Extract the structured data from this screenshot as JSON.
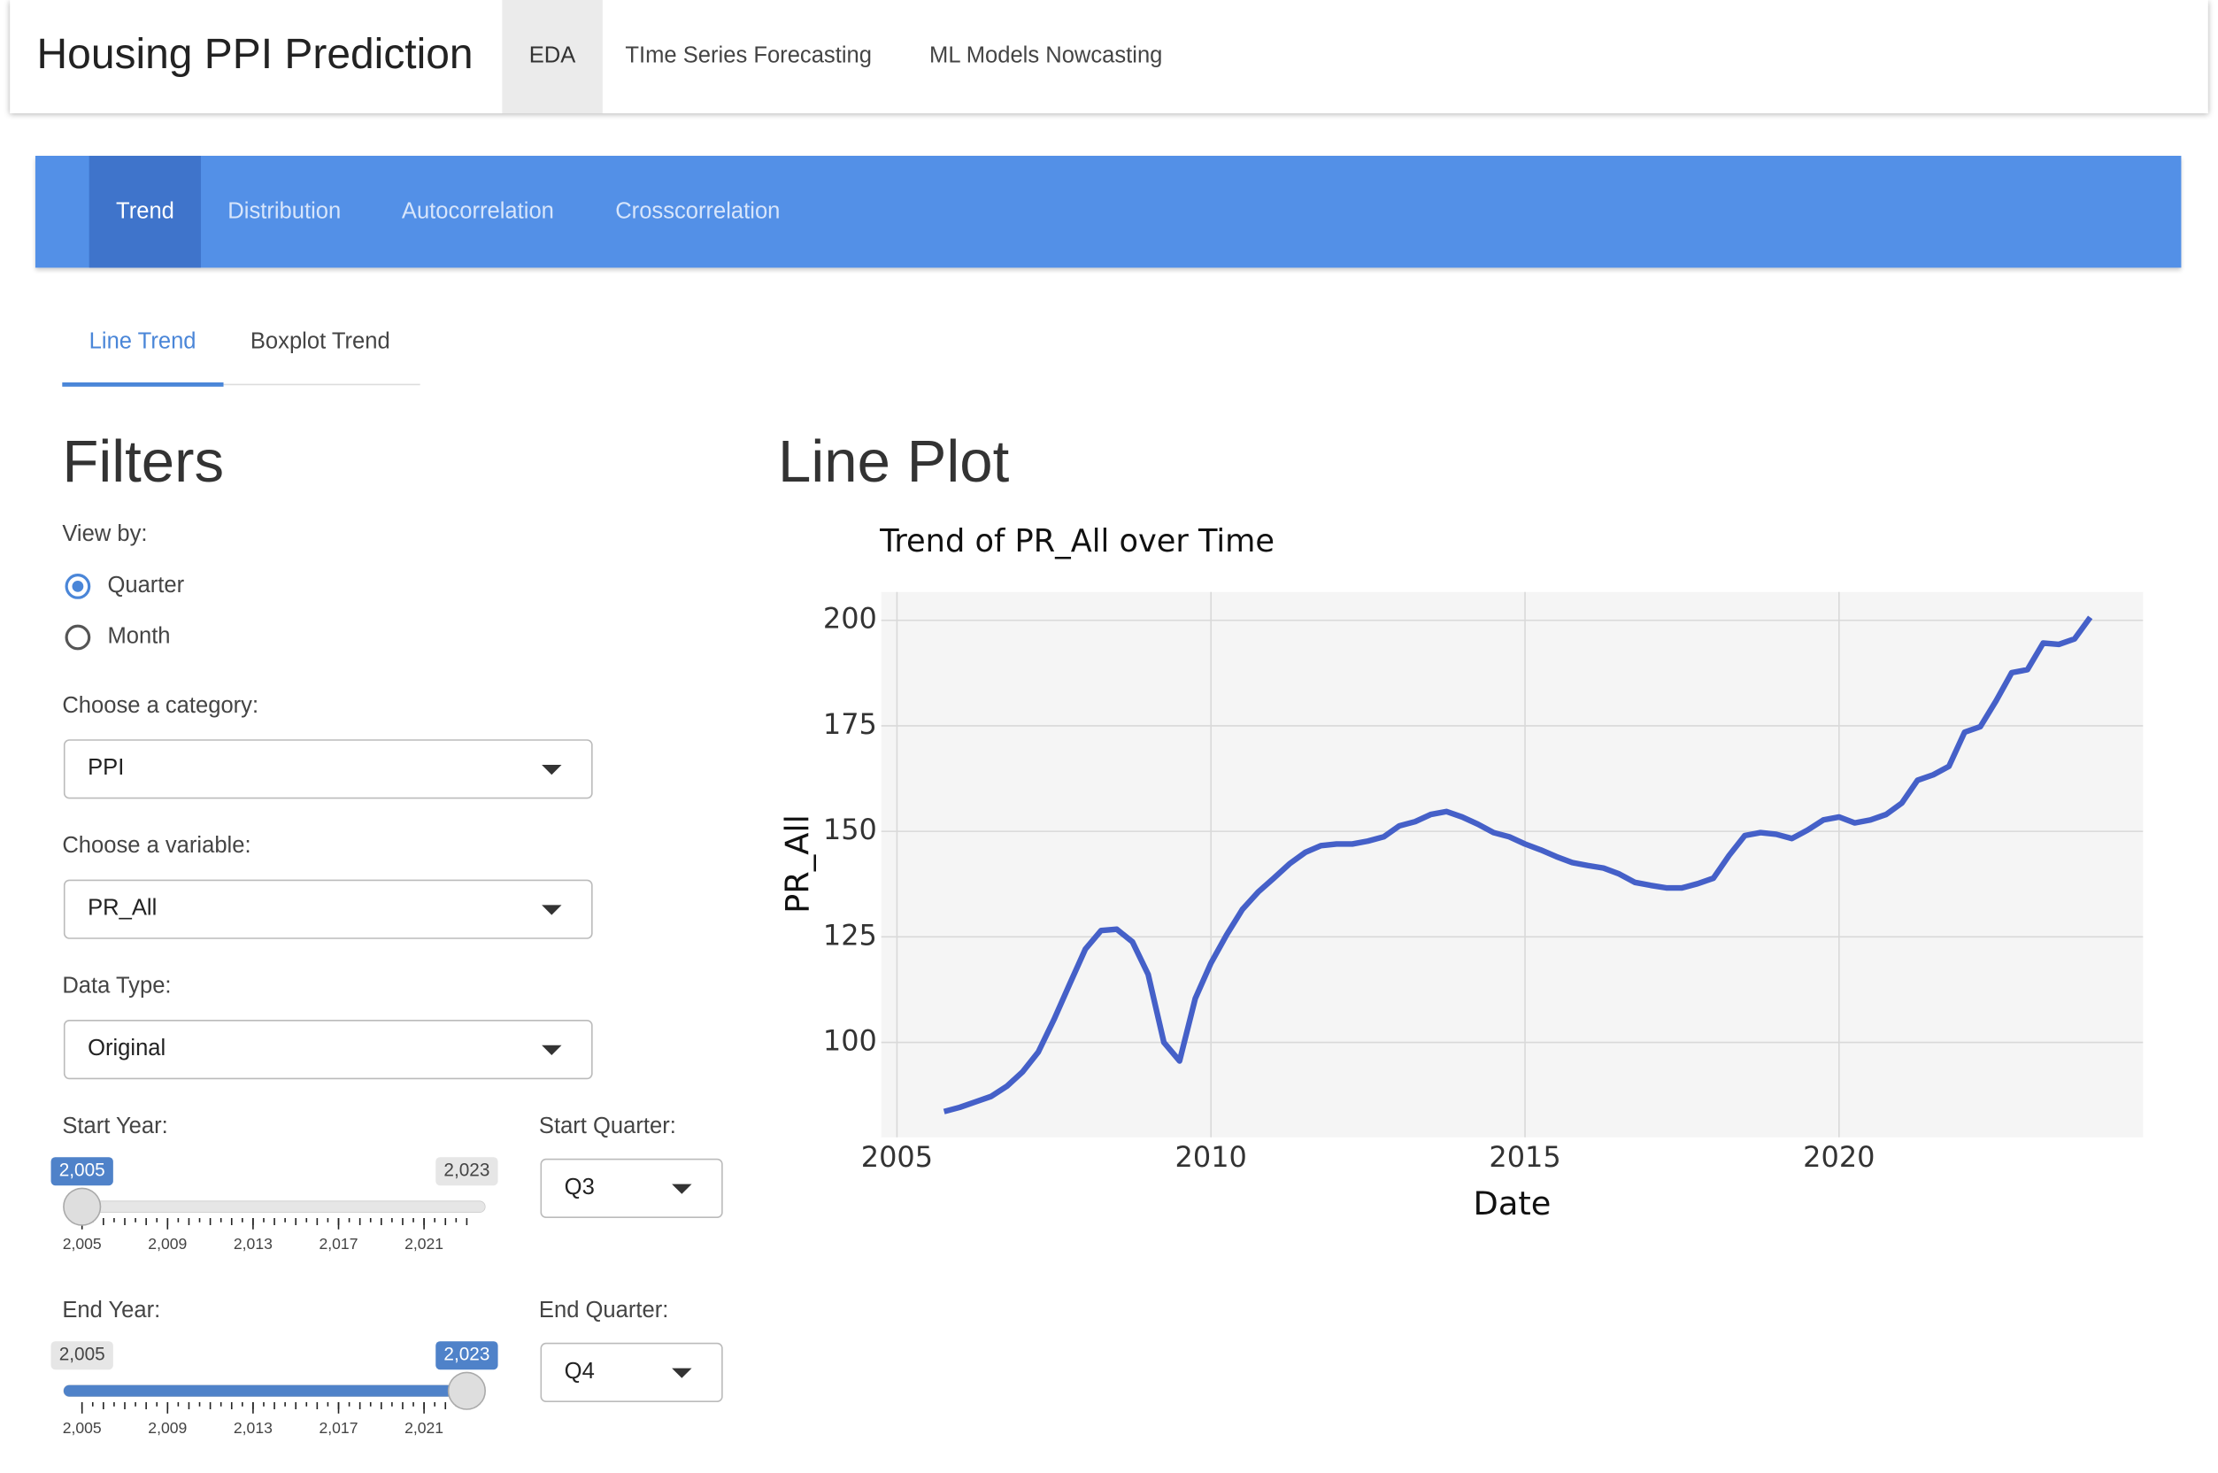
{
  "navbar": {
    "title": "Housing PPI Prediction",
    "tabs": [
      "EDA",
      "TIme Series Forecasting",
      "ML Models Nowcasting"
    ]
  },
  "subnav": {
    "tabs": [
      "Trend",
      "Distribution",
      "Autocorrelation",
      "Crosscorrelation"
    ]
  },
  "subtabs": [
    "Line Trend",
    "Boxplot Trend"
  ],
  "filters": {
    "heading": "Filters",
    "view_by": {
      "label": "View by:",
      "options": [
        "Quarter",
        "Month"
      ]
    },
    "category": {
      "label": "Choose a category:",
      "value": "PPI"
    },
    "variable": {
      "label": "Choose a variable:",
      "value": "PR_All"
    },
    "data_type": {
      "label": "Data Type:",
      "value": "Original"
    },
    "start_year": {
      "label": "Start Year:",
      "min": {
        "value": 2005,
        "label": "2,005"
      },
      "max": {
        "value": 2023,
        "label": "2,023"
      },
      "value": {
        "value": 2005,
        "label": "2,005"
      },
      "ticks": [
        {
          "value": 2005,
          "label": "2,005"
        },
        {
          "value": 2009,
          "label": "2,009"
        },
        {
          "value": 2013,
          "label": "2,013"
        },
        {
          "value": 2017,
          "label": "2,017"
        },
        {
          "value": 2021,
          "label": "2,021"
        }
      ]
    },
    "start_quarter": {
      "label": "Start Quarter:",
      "value": "Q3"
    },
    "end_year": {
      "label": "End Year:",
      "min": {
        "value": 2005,
        "label": "2,005"
      },
      "max": {
        "value": 2023,
        "label": "2,023"
      },
      "value": {
        "value": 2023,
        "label": "2,023"
      },
      "ticks": [
        {
          "value": 2005,
          "label": "2,005"
        },
        {
          "value": 2009,
          "label": "2,009"
        },
        {
          "value": 2013,
          "label": "2,013"
        },
        {
          "value": 2017,
          "label": "2,017"
        },
        {
          "value": 2021,
          "label": "2,021"
        }
      ]
    },
    "end_quarter": {
      "label": "End Quarter:",
      "value": "Q4"
    }
  },
  "plot_heading": "Line Plot",
  "chart_data": {
    "type": "line",
    "title": "Trend of PR_All over Time",
    "xlabel": "Date",
    "ylabel": "PR_All",
    "x": [
      2005.75,
      2006.0,
      2006.25,
      2006.5,
      2006.75,
      2007.0,
      2007.25,
      2007.5,
      2007.75,
      2008.0,
      2008.25,
      2008.5,
      2008.75,
      2009.0,
      2009.25,
      2009.5,
      2009.75,
      2010.0,
      2010.25,
      2010.5,
      2010.75,
      2011.0,
      2011.25,
      2011.5,
      2011.75,
      2012.0,
      2012.25,
      2012.5,
      2012.75,
      2013.0,
      2013.25,
      2013.5,
      2013.75,
      2014.0,
      2014.25,
      2014.5,
      2014.75,
      2015.0,
      2015.25,
      2015.5,
      2015.75,
      2016.0,
      2016.25,
      2016.5,
      2016.75,
      2017.0,
      2017.25,
      2017.5,
      2017.75,
      2018.0,
      2018.25,
      2018.5,
      2018.75,
      2019.0,
      2019.25,
      2019.5,
      2019.75,
      2020.0,
      2020.25,
      2020.5,
      2020.75,
      2021.0,
      2021.25,
      2021.5,
      2021.75,
      2022.0,
      2022.25,
      2022.5,
      2022.75,
      2023.0,
      2023.25,
      2023.5,
      2023.75,
      2024.0
    ],
    "series": [
      {
        "name": "PR_All",
        "color": "#4560c8",
        "values": [
          83.6,
          84.6,
          85.9,
          87.2,
          89.6,
          93.0,
          97.7,
          105.4,
          113.8,
          122.1,
          126.5,
          126.8,
          123.8,
          116.1,
          100.0,
          95.6,
          110.4,
          118.8,
          125.5,
          131.5,
          135.6,
          138.9,
          142.3,
          145.0,
          146.6,
          147.0,
          147.0,
          147.7,
          148.7,
          151.3,
          152.3,
          154.0,
          154.7,
          153.4,
          151.7,
          149.7,
          148.7,
          147.0,
          145.6,
          144.0,
          142.6,
          141.9,
          141.3,
          139.9,
          137.9,
          137.2,
          136.6,
          136.6,
          137.6,
          138.9,
          144.3,
          149.0,
          149.7,
          149.3,
          148.3,
          150.3,
          152.7,
          153.4,
          152.0,
          152.7,
          154.0,
          156.7,
          162.1,
          163.4,
          165.4,
          173.5,
          174.8,
          180.9,
          187.6,
          188.3,
          194.6,
          194.3,
          195.6,
          200.7
        ]
      }
    ],
    "xlim": [
      2004.75,
      2024.84
    ],
    "ylim": [
      77.5,
      206.7
    ],
    "xticks": [
      2005,
      2010,
      2015,
      2020
    ],
    "yticks": [
      100,
      125,
      150,
      175,
      200
    ],
    "grid": true,
    "background": "#f5f5f5"
  }
}
